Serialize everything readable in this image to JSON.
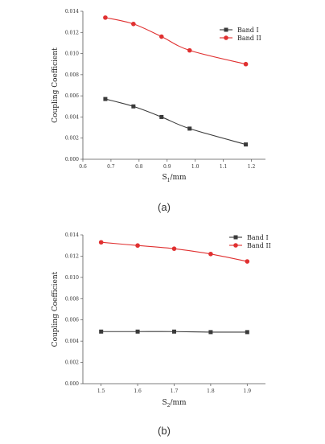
{
  "chart_data": [
    {
      "type": "line",
      "caption": "(a)",
      "xlabel": "S",
      "xlabel_sub": "1",
      "xlabel_unit": "/mm",
      "ylabel": "Coupling Coefficient",
      "xlim": [
        0.6,
        1.25
      ],
      "ylim": [
        0.0,
        0.014
      ],
      "xticks": [
        0.6,
        0.7,
        0.8,
        0.9,
        1.0,
        1.1,
        1.2
      ],
      "xtick_labels": [
        "0.6",
        "0.7",
        "0.8",
        "0.9",
        "1.0",
        "1.1",
        "1.2"
      ],
      "yticks": [
        0.0,
        0.002,
        0.004,
        0.006,
        0.008,
        0.01,
        0.012,
        0.014
      ],
      "ytick_labels": [
        "0.000",
        "0.002",
        "0.004",
        "0.006",
        "0.008",
        "0.010",
        "0.012",
        "0.014"
      ],
      "legend_position": "top-right",
      "series": [
        {
          "name": "Band I",
          "color": "#3a3a3a",
          "marker": "square",
          "x": [
            0.68,
            0.78,
            0.88,
            0.98,
            1.18
          ],
          "y": [
            0.0057,
            0.005,
            0.004,
            0.0029,
            0.0014
          ]
        },
        {
          "name": "Band II",
          "color": "#e03030",
          "marker": "circle",
          "x": [
            0.68,
            0.78,
            0.88,
            0.98,
            1.18
          ],
          "y": [
            0.0134,
            0.0128,
            0.0116,
            0.0103,
            0.009
          ]
        }
      ]
    },
    {
      "type": "line",
      "caption": "(b)",
      "xlabel": "S",
      "xlabel_sub": "2",
      "xlabel_unit": "/mm",
      "ylabel": "Coupling Coefficient",
      "xlim": [
        1.45,
        1.95
      ],
      "ylim": [
        0.0,
        0.014
      ],
      "xticks": [
        1.5,
        1.6,
        1.7,
        1.8,
        1.9
      ],
      "xtick_labels": [
        "1.5",
        "1.6",
        "1.7",
        "1.8",
        "1.9"
      ],
      "yticks": [
        0.0,
        0.002,
        0.004,
        0.006,
        0.008,
        0.01,
        0.012,
        0.014
      ],
      "ytick_labels": [
        "0.000",
        "0.002",
        "0.004",
        "0.006",
        "0.008",
        "0.010",
        "0.012",
        "0.014"
      ],
      "legend_position": "top-right",
      "series": [
        {
          "name": "Band I",
          "color": "#3a3a3a",
          "marker": "square",
          "x": [
            1.5,
            1.6,
            1.7,
            1.8,
            1.9
          ],
          "y": [
            0.0049,
            0.0049,
            0.0049,
            0.00485,
            0.00485
          ]
        },
        {
          "name": "Band II",
          "color": "#e03030",
          "marker": "circle",
          "x": [
            1.5,
            1.6,
            1.7,
            1.8,
            1.9
          ],
          "y": [
            0.0133,
            0.013,
            0.0127,
            0.0122,
            0.0115
          ]
        }
      ]
    }
  ]
}
